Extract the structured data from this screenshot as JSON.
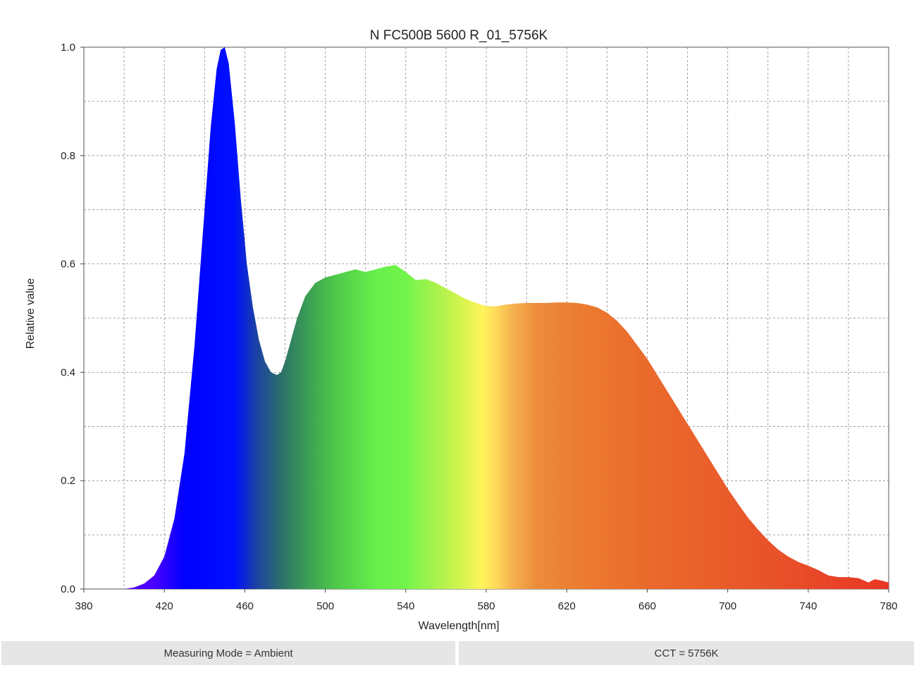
{
  "chart_data": {
    "type": "area",
    "title": "N FC500B 5600 R_01_5756K",
    "xlabel": "Wavelength[nm]",
    "ylabel": "Relative value",
    "xlim": [
      380,
      780
    ],
    "ylim": [
      0,
      1.0
    ],
    "x_ticks": [
      380,
      420,
      460,
      500,
      540,
      580,
      620,
      660,
      700,
      740,
      780
    ],
    "x_tick_labels": [
      "380",
      "420",
      "460",
      "500",
      "540",
      "580",
      "620",
      "660",
      "700",
      "740",
      "780"
    ],
    "y_ticks": [
      0,
      0.2,
      0.4,
      0.6,
      0.8,
      1.0
    ],
    "y_tick_labels": [
      "0.0",
      "0.2",
      "0.4",
      "0.6",
      "0.8",
      "1.0"
    ],
    "grid": true,
    "x_minor_grid_step": 20,
    "fill": "visible-spectrum gradient",
    "x": [
      380,
      400,
      405,
      410,
      415,
      420,
      425,
      430,
      435,
      440,
      443,
      446,
      448,
      450,
      452,
      455,
      458,
      461,
      464,
      467,
      470,
      473,
      476,
      478,
      480,
      483,
      486,
      490,
      495,
      500,
      505,
      510,
      515,
      520,
      525,
      530,
      535,
      540,
      545,
      550,
      555,
      560,
      565,
      570,
      575,
      580,
      585,
      590,
      595,
      600,
      605,
      610,
      615,
      620,
      625,
      630,
      635,
      640,
      645,
      650,
      655,
      660,
      665,
      670,
      675,
      680,
      685,
      690,
      695,
      700,
      705,
      710,
      715,
      720,
      725,
      730,
      735,
      740,
      745,
      750,
      755,
      760,
      765,
      770,
      773,
      776,
      780
    ],
    "values": [
      0.0,
      0.0,
      0.003,
      0.01,
      0.025,
      0.06,
      0.13,
      0.25,
      0.45,
      0.7,
      0.85,
      0.96,
      0.995,
      1.0,
      0.97,
      0.86,
      0.72,
      0.6,
      0.52,
      0.46,
      0.42,
      0.4,
      0.395,
      0.4,
      0.42,
      0.46,
      0.5,
      0.54,
      0.565,
      0.575,
      0.58,
      0.585,
      0.59,
      0.585,
      0.59,
      0.595,
      0.598,
      0.585,
      0.57,
      0.572,
      0.565,
      0.555,
      0.545,
      0.535,
      0.528,
      0.522,
      0.522,
      0.525,
      0.527,
      0.528,
      0.528,
      0.528,
      0.529,
      0.529,
      0.528,
      0.525,
      0.52,
      0.51,
      0.495,
      0.475,
      0.45,
      0.425,
      0.395,
      0.365,
      0.335,
      0.305,
      0.275,
      0.245,
      0.215,
      0.185,
      0.158,
      0.132,
      0.11,
      0.09,
      0.073,
      0.06,
      0.05,
      0.043,
      0.035,
      0.025,
      0.022,
      0.022,
      0.02,
      0.012,
      0.018,
      0.016,
      0.012
    ]
  },
  "footer": {
    "left": "Measuring Mode = Ambient",
    "right": "CCT = 5756K"
  }
}
